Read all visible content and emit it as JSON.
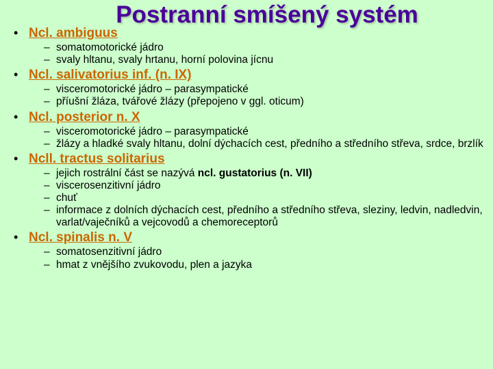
{
  "colors": {
    "background": "#ccffcc",
    "title": "#4a0099",
    "heading": "#cc6600",
    "body": "#000000"
  },
  "title": "Postranní smíšený systém",
  "sections": [
    {
      "heading": "Ncl. ambiguus",
      "items": [
        {
          "text": "somatomotorické jádro"
        },
        {
          "text": "svaly hltanu, svaly hrtanu, horní polovina jícnu"
        }
      ]
    },
    {
      "heading": "Ncl. salivatorius inf. (n. IX)",
      "items": [
        {
          "text": "visceromotorické jádro – parasympatické"
        },
        {
          "text": "příušní žláza, tvářové žlázy (přepojeno v ggl. oticum)"
        }
      ]
    },
    {
      "heading": "Ncl. posterior n. X",
      "items": [
        {
          "text": "visceromotorické jádro – parasympatické"
        },
        {
          "text": "žlázy a hladké svaly hltanu, dolní dýchacích cest, předního a středního střeva, srdce, brzlík"
        }
      ]
    },
    {
      "heading": "Ncll. tractus solitarius",
      "items": [
        {
          "prefix": "jejich rostrální část se nazývá ",
          "bold": "ncl. gustatorius (n. VII)"
        },
        {
          "text": "viscerosenzitivní jádro"
        },
        {
          "text": "chuť"
        },
        {
          "text": "informace z dolních dýchacích cest, předního a středního střeva, sleziny, ledvin, nadledvin, varlat/vaječníků a vejcovodů a chemoreceptorů"
        }
      ]
    },
    {
      "heading": "Ncl. spinalis n. V",
      "items": [
        {
          "text": "somatosenzitivní jádro"
        },
        {
          "text": "hmat z vnějšího zvukovodu, plen a jazyka"
        }
      ]
    }
  ]
}
